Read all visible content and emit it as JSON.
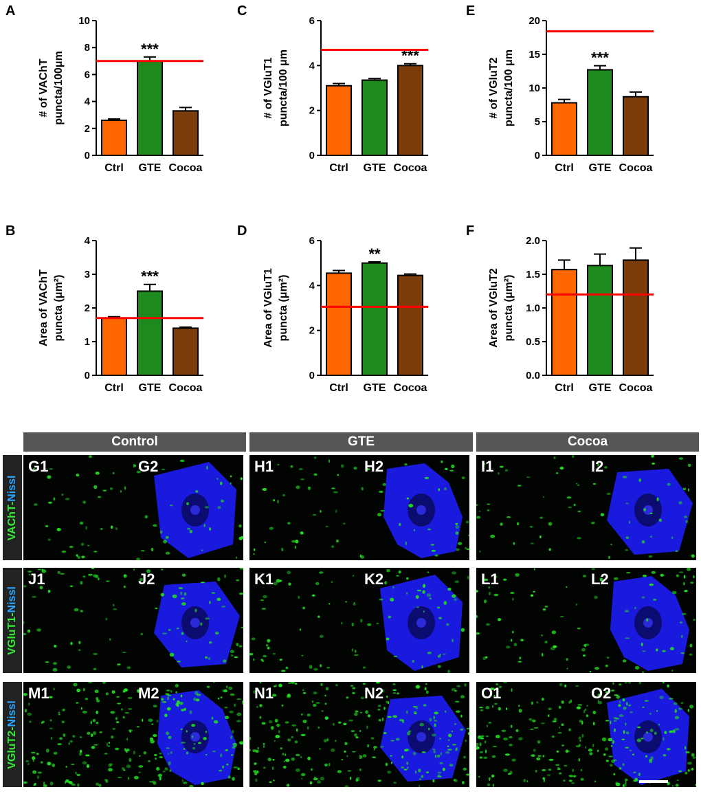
{
  "chart_data": [
    {
      "panel": "A",
      "type": "bar",
      "ylabel": "# of VAChT\npuncta/100μm",
      "categories": [
        "Ctrl",
        "GTE",
        "Cocoa"
      ],
      "values": [
        2.6,
        7.0,
        3.3
      ],
      "errors": [
        0.1,
        0.3,
        0.25
      ],
      "ylim": [
        0,
        10
      ],
      "yticks": [
        "0",
        "2",
        "4",
        "6",
        "8",
        "10"
      ],
      "reference_line": 7.0,
      "annotations": [
        {
          "category": "GTE",
          "text": "***"
        }
      ],
      "colors": [
        "#ff6600",
        "#1e8a1e",
        "#7a3c0a"
      ]
    },
    {
      "panel": "B",
      "type": "bar",
      "ylabel": "Area of VAChT\npuncta (μm²)",
      "categories": [
        "Ctrl",
        "GTE",
        "Cocoa"
      ],
      "values": [
        1.7,
        2.5,
        1.4
      ],
      "errors": [
        0.04,
        0.2,
        0.03
      ],
      "ylim": [
        0,
        4
      ],
      "yticks": [
        "0",
        "1",
        "2",
        "3",
        "4"
      ],
      "reference_line": 1.7,
      "annotations": [
        {
          "category": "GTE",
          "text": "***"
        }
      ],
      "colors": [
        "#ff6600",
        "#1e8a1e",
        "#7a3c0a"
      ]
    },
    {
      "panel": "C",
      "type": "bar",
      "ylabel": "# of VGluT1\npuncta/100 μm",
      "categories": [
        "Ctrl",
        "GTE",
        "Cocoa"
      ],
      "values": [
        3.1,
        3.35,
        4.0
      ],
      "errors": [
        0.1,
        0.07,
        0.08
      ],
      "ylim": [
        0,
        6
      ],
      "yticks": [
        "0",
        "2",
        "4",
        "6"
      ],
      "reference_line": 4.7,
      "annotations": [
        {
          "category": "Cocoa",
          "text": "***"
        }
      ],
      "colors": [
        "#ff6600",
        "#1e8a1e",
        "#7a3c0a"
      ]
    },
    {
      "panel": "D",
      "type": "bar",
      "ylabel": "Area of VGluT1\npuncta (μm²)",
      "categories": [
        "Ctrl",
        "GTE",
        "Cocoa"
      ],
      "values": [
        4.55,
        5.0,
        4.45
      ],
      "errors": [
        0.12,
        0.05,
        0.06
      ],
      "ylim": [
        0,
        6
      ],
      "yticks": [
        "0",
        "2",
        "4",
        "6"
      ],
      "reference_line": 3.05,
      "annotations": [
        {
          "category": "GTE",
          "text": "**"
        }
      ],
      "colors": [
        "#ff6600",
        "#1e8a1e",
        "#7a3c0a"
      ]
    },
    {
      "panel": "E",
      "type": "bar",
      "ylabel": "# of VGluT2\npuncta/100 μm",
      "categories": [
        "Ctrl",
        "GTE",
        "Cocoa"
      ],
      "values": [
        7.8,
        12.7,
        8.7
      ],
      "errors": [
        0.5,
        0.6,
        0.7
      ],
      "ylim": [
        0,
        20
      ],
      "yticks": [
        "0",
        "5",
        "10",
        "15",
        "20"
      ],
      "reference_line": 18.4,
      "annotations": [
        {
          "category": "GTE",
          "text": "***"
        }
      ],
      "colors": [
        "#ff6600",
        "#1e8a1e",
        "#7a3c0a"
      ]
    },
    {
      "panel": "F",
      "type": "bar",
      "ylabel": "Area of VGluT2\npuncta (μm²)",
      "categories": [
        "Ctrl",
        "GTE",
        "Cocoa"
      ],
      "values": [
        1.57,
        1.63,
        1.71
      ],
      "errors": [
        0.14,
        0.17,
        0.18
      ],
      "ylim": [
        0,
        2.0
      ],
      "yticks": [
        "0.0",
        "0.5",
        "1.0",
        "1.5",
        "2.0"
      ],
      "reference_line": 1.2,
      "annotations": [],
      "colors": [
        "#ff6600",
        "#1e8a1e",
        "#7a3c0a"
      ]
    }
  ],
  "micrographs": {
    "column_headers": [
      "Control",
      "GTE",
      "Cocoa"
    ],
    "row_labels": [
      {
        "green": "VAChT",
        "sep": "-",
        "blue": "Nissl"
      },
      {
        "green": "VGluT1",
        "sep": "-",
        "blue": "Nissl"
      },
      {
        "green": "VGluT2",
        "sep": "-",
        "blue": "Nissl"
      }
    ],
    "panels": [
      [
        "G1",
        "G2",
        "H1",
        "H2",
        "I1",
        "I2"
      ],
      [
        "J1",
        "J2",
        "K1",
        "K2",
        "L1",
        "L2"
      ],
      [
        "M1",
        "M2",
        "N1",
        "N2",
        "O1",
        "O2"
      ]
    ],
    "colors": {
      "puncta": "#22dd22",
      "nissl": "#1a1adf",
      "background": "#020402",
      "reference_line": "#ff0000"
    }
  }
}
